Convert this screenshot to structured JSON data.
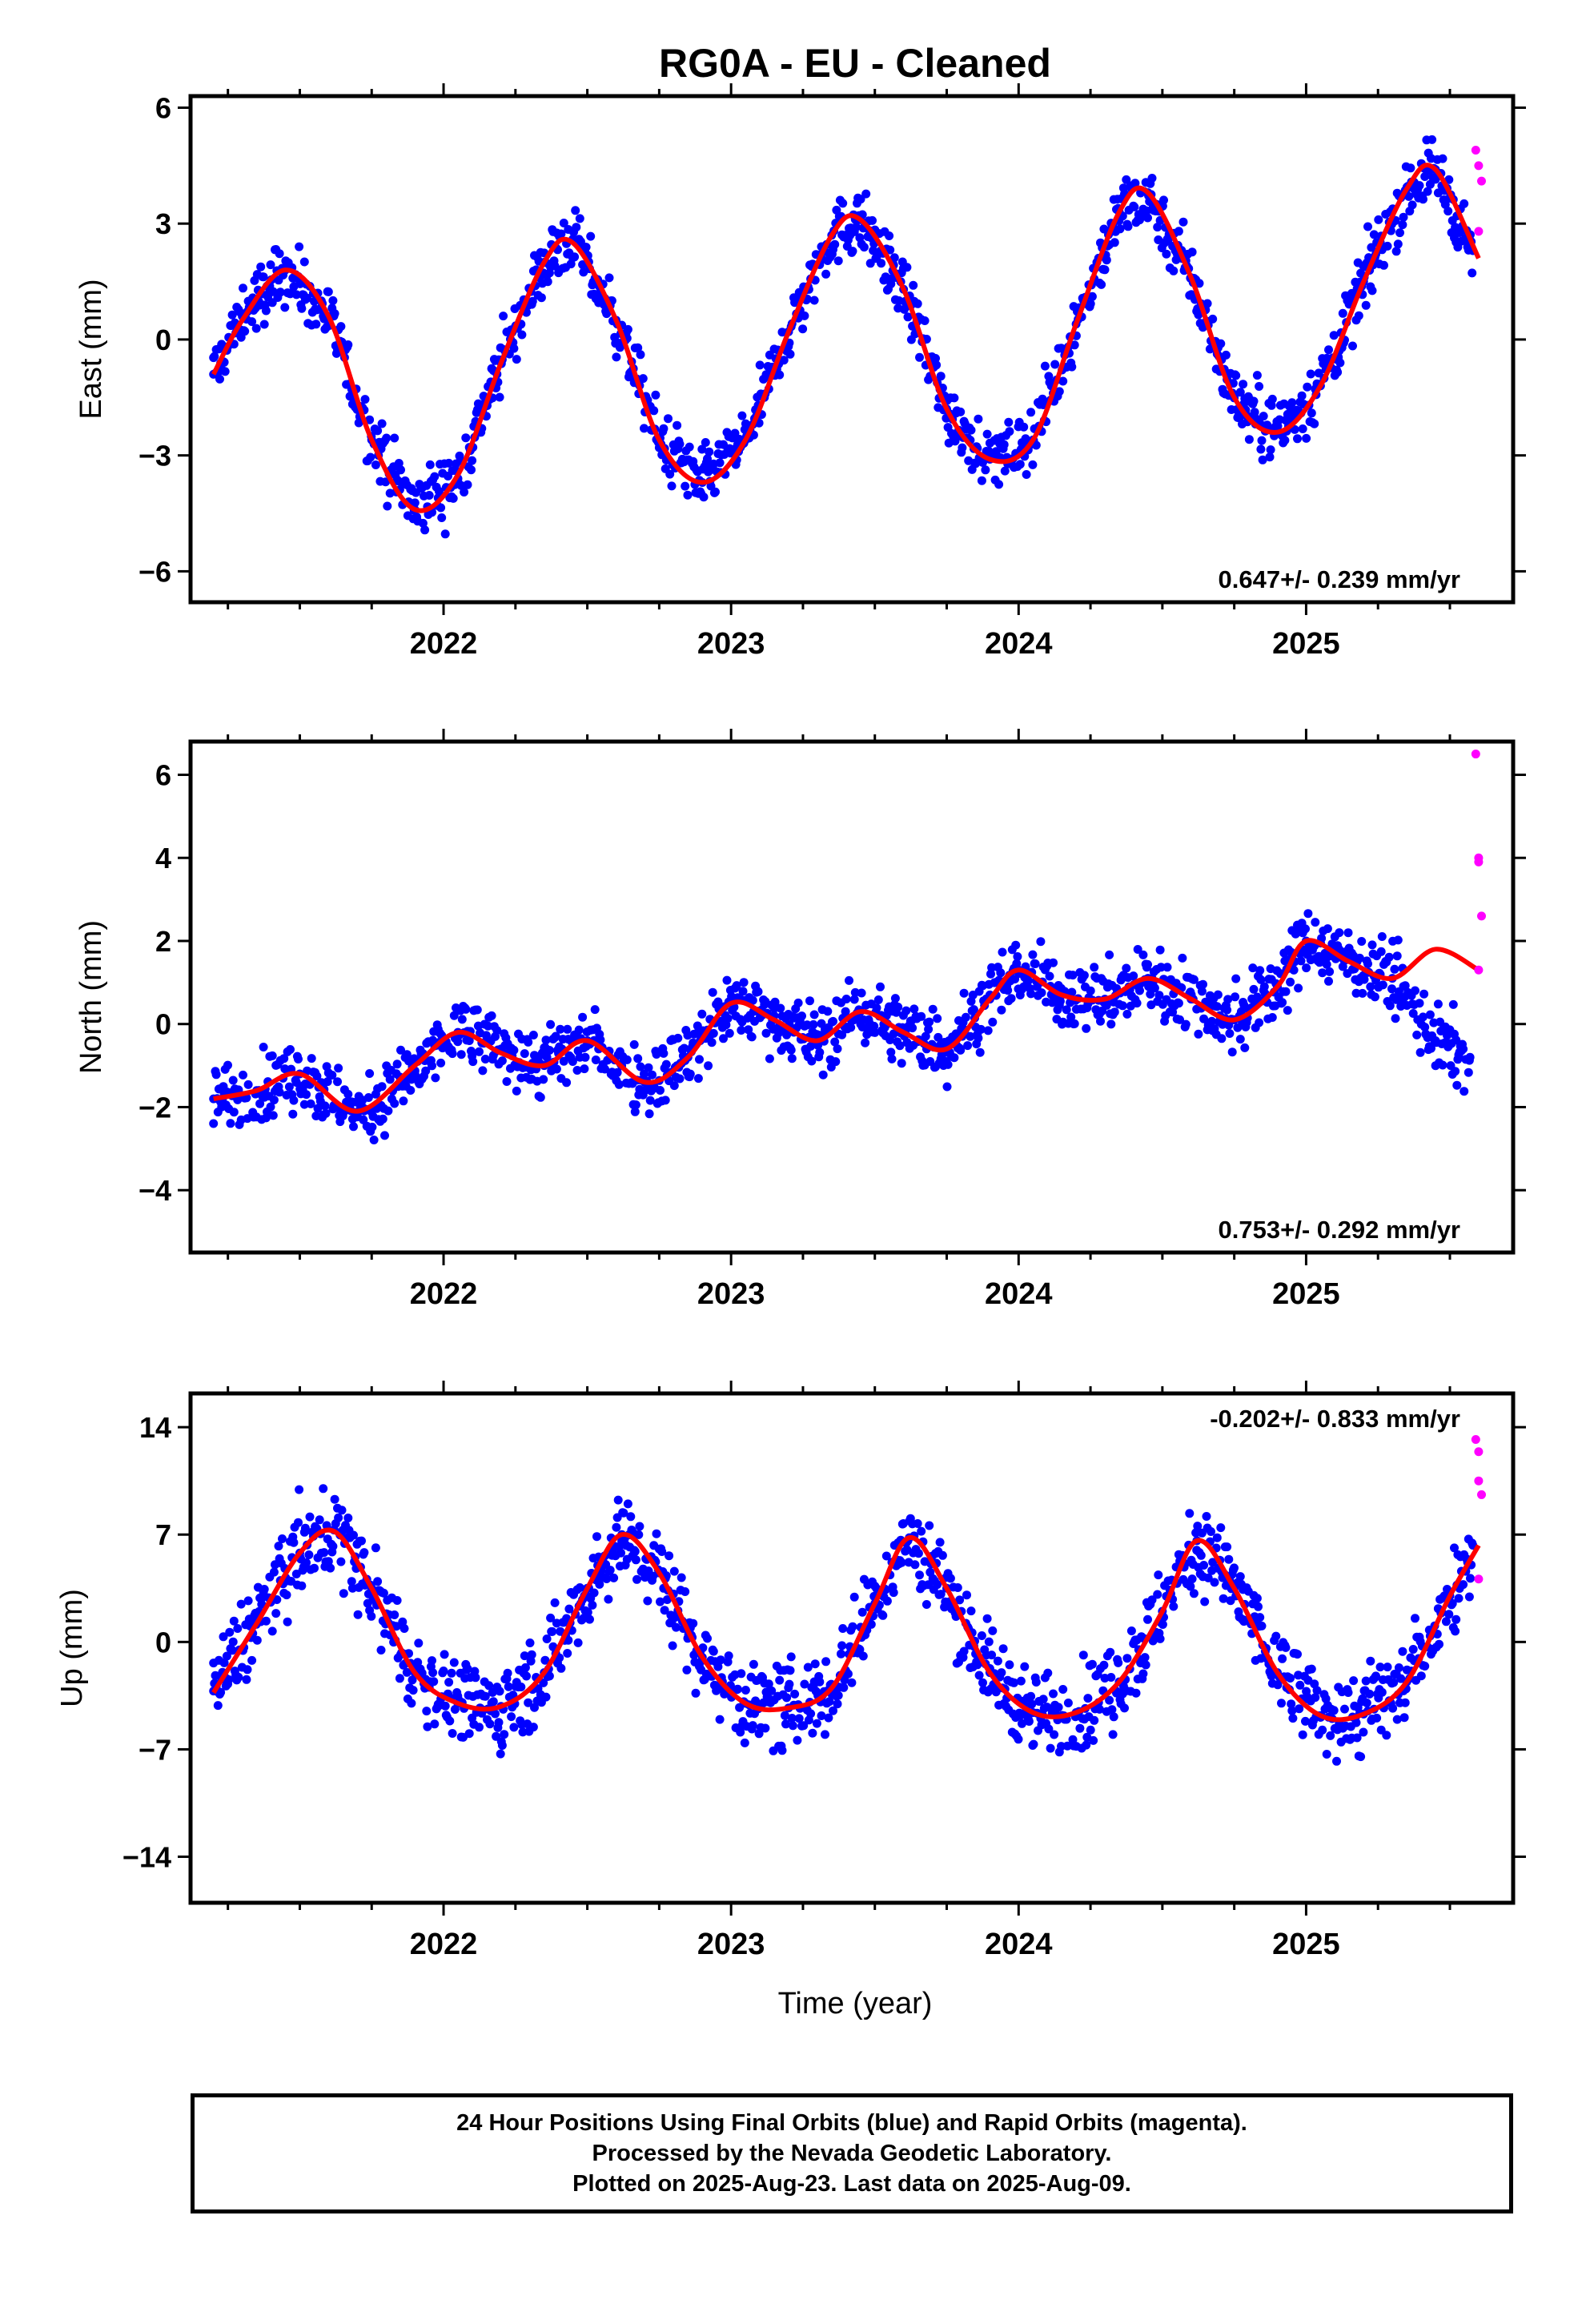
{
  "title": "RG0A  - EU - Cleaned",
  "footer": {
    "line1": "24 Hour Positions Using Final Orbits (blue) and Rapid Orbits (magenta).",
    "line2": "Processed by the Nevada Geodetic Laboratory.",
    "line3": "Plotted on 2025-Aug-23. Last data on 2025-Aug-09."
  },
  "colors": {
    "final_orbits": "#0000ff",
    "rapid_orbits": "#ff00ff",
    "model_fit": "#ff0000",
    "frame": "#000000"
  },
  "chart_data": [
    {
      "type": "scatter",
      "panel": "east",
      "ylabel": "East (mm)",
      "xlabel": "",
      "xlim": [
        2021.12,
        2025.72
      ],
      "ylim": [
        -6.8,
        6.3
      ],
      "xticks": [
        "2022",
        "2023",
        "2024",
        "2025"
      ],
      "yticks": [
        "6",
        "3",
        "0",
        "−3",
        "−6"
      ],
      "ytick_values": [
        6,
        3,
        0,
        -3,
        -6
      ],
      "rate_text": "0.647+/- 0.239 mm/yr",
      "rate_position": "bottom-right",
      "series": [
        {
          "name": "final orbits",
          "color": "#0000ff",
          "x": [
            2021.2,
            2021.3,
            2021.45,
            2021.6,
            2021.75,
            2021.9,
            2022.05,
            2022.2,
            2022.35,
            2022.45,
            2022.6,
            2022.75,
            2022.9,
            2023.05,
            2023.2,
            2023.35,
            2023.45,
            2023.6,
            2023.75,
            2023.9,
            2024.05,
            2024.2,
            2024.35,
            2024.45,
            2024.6,
            2024.75,
            2024.9,
            2025.05,
            2025.2,
            2025.35,
            2025.45,
            2025.58
          ],
          "y": [
            -0.9,
            0.6,
            1.8,
            0.6,
            -2.6,
            -4.4,
            -3.6,
            -0.6,
            2.0,
            2.6,
            0.5,
            -2.6,
            -3.7,
            -2.6,
            0.2,
            2.7,
            3.1,
            1.3,
            -1.8,
            -3.1,
            -2.6,
            0.4,
            3.3,
            3.8,
            1.6,
            -1.5,
            -2.4,
            -1.2,
            1.5,
            3.9,
            4.4,
            2.3
          ]
        },
        {
          "name": "rapid orbits",
          "color": "#ff00ff",
          "x": [
            2025.59,
            2025.6,
            2025.61,
            2025.6
          ],
          "y": [
            4.9,
            4.5,
            4.1,
            2.8
          ]
        },
        {
          "name": "model fit",
          "color": "#ff0000",
          "x": [
            2021.2,
            2021.3,
            2021.45,
            2021.6,
            2021.75,
            2021.9,
            2022.05,
            2022.2,
            2022.35,
            2022.45,
            2022.6,
            2022.75,
            2022.9,
            2023.05,
            2023.2,
            2023.35,
            2023.45,
            2023.6,
            2023.75,
            2023.9,
            2024.05,
            2024.2,
            2024.35,
            2024.45,
            2024.6,
            2024.75,
            2024.9,
            2025.05,
            2025.2,
            2025.35,
            2025.45,
            2025.6
          ],
          "y": [
            -0.9,
            0.5,
            1.8,
            0.6,
            -2.6,
            -4.4,
            -3.5,
            -0.6,
            2.0,
            2.5,
            0.5,
            -2.6,
            -3.7,
            -2.6,
            0.2,
            2.7,
            3.1,
            1.3,
            -1.8,
            -3.1,
            -2.6,
            0.4,
            3.3,
            3.8,
            1.6,
            -1.5,
            -2.4,
            -1.2,
            1.5,
            3.9,
            4.4,
            2.1
          ]
        }
      ]
    },
    {
      "type": "scatter",
      "panel": "north",
      "ylabel": "North (mm)",
      "xlabel": "",
      "xlim": [
        2021.12,
        2025.72
      ],
      "ylim": [
        -5.5,
        6.8
      ],
      "xticks": [
        "2022",
        "2023",
        "2024",
        "2025"
      ],
      "yticks": [
        "6",
        "4",
        "2",
        "0",
        "−2",
        "−4"
      ],
      "ytick_values": [
        6,
        4,
        2,
        0,
        -2,
        -4
      ],
      "rate_text": "0.753+/- 0.292 mm/yr",
      "rate_position": "bottom-right",
      "series": [
        {
          "name": "final orbits",
          "color": "#0000ff",
          "x": [
            2021.2,
            2021.35,
            2021.5,
            2021.7,
            2021.9,
            2022.05,
            2022.2,
            2022.35,
            2022.5,
            2022.7,
            2022.85,
            2023.0,
            2023.15,
            2023.3,
            2023.45,
            2023.6,
            2023.75,
            2023.9,
            2024.0,
            2024.15,
            2024.3,
            2024.45,
            2024.6,
            2024.75,
            2024.9,
            2025.0,
            2025.15,
            2025.3,
            2025.45,
            2025.57
          ],
          "y": [
            -1.8,
            -1.6,
            -1.2,
            -2.2,
            -1.2,
            -0.2,
            -0.6,
            -1.0,
            -0.4,
            -1.4,
            -0.8,
            0.5,
            0.2,
            -0.4,
            0.3,
            -0.2,
            -0.6,
            0.7,
            1.3,
            0.7,
            0.6,
            1.1,
            0.6,
            0.1,
            0.9,
            2.0,
            1.6,
            1.1,
            -0.4,
            -0.8
          ]
        },
        {
          "name": "rapid orbits",
          "color": "#ff00ff",
          "x": [
            2025.59,
            2025.6,
            2025.6,
            2025.61,
            2025.6
          ],
          "y": [
            6.5,
            4.0,
            3.9,
            2.6,
            1.3
          ]
        },
        {
          "name": "model fit",
          "color": "#ff0000",
          "x": [
            2021.2,
            2021.35,
            2021.5,
            2021.7,
            2021.9,
            2022.05,
            2022.2,
            2022.35,
            2022.5,
            2022.7,
            2022.85,
            2023.0,
            2023.15,
            2023.3,
            2023.45,
            2023.6,
            2023.75,
            2023.9,
            2024.0,
            2024.15,
            2024.3,
            2024.45,
            2024.6,
            2024.75,
            2024.9,
            2025.0,
            2025.15,
            2025.3,
            2025.45,
            2025.6
          ],
          "y": [
            -1.8,
            -1.6,
            -1.2,
            -2.1,
            -1.0,
            -0.2,
            -0.7,
            -1.0,
            -0.4,
            -1.4,
            -0.8,
            0.5,
            0.1,
            -0.4,
            0.3,
            -0.2,
            -0.6,
            0.6,
            1.3,
            0.7,
            0.6,
            1.1,
            0.6,
            0.1,
            0.9,
            2.0,
            1.5,
            1.1,
            1.8,
            1.3
          ]
        }
      ]
    },
    {
      "type": "scatter",
      "panel": "up",
      "ylabel": "Up (mm)",
      "xlabel": "Time (year)",
      "xlim": [
        2021.12,
        2025.72
      ],
      "ylim": [
        -17,
        16.2
      ],
      "xticks": [
        "2022",
        "2023",
        "2024",
        "2025"
      ],
      "yticks": [
        "14",
        "7",
        "0",
        "−7",
        "−14"
      ],
      "ytick_values": [
        14,
        7,
        0,
        -7,
        -14
      ],
      "rate_text": "-0.202+/- 0.833 mm/yr",
      "rate_position": "top-right",
      "series": [
        {
          "name": "final orbits",
          "color": "#0000ff",
          "x": [
            2021.2,
            2021.35,
            2021.5,
            2021.62,
            2021.75,
            2021.9,
            2022.05,
            2022.2,
            2022.35,
            2022.5,
            2022.62,
            2022.75,
            2022.9,
            2023.05,
            2023.2,
            2023.35,
            2023.5,
            2023.62,
            2023.75,
            2023.9,
            2024.05,
            2024.2,
            2024.35,
            2024.5,
            2024.62,
            2024.75,
            2024.9,
            2025.05,
            2025.2,
            2025.35,
            2025.5,
            2025.58
          ],
          "y": [
            -3.2,
            1.4,
            5.8,
            7.3,
            3.5,
            -2.0,
            -4.0,
            -4.2,
            -2.0,
            3.5,
            7.0,
            4.5,
            -1.0,
            -4.0,
            -4.3,
            -3.0,
            2.5,
            6.8,
            3.5,
            -2.0,
            -4.6,
            -4.6,
            -2.6,
            2.0,
            6.6,
            3.5,
            -2.0,
            -4.8,
            -4.7,
            -2.6,
            3.0,
            6.3
          ]
        },
        {
          "name": "rapid orbits",
          "color": "#ff00ff",
          "x": [
            2025.59,
            2025.6,
            2025.6,
            2025.61,
            2025.6
          ],
          "y": [
            13.2,
            12.4,
            10.5,
            9.6,
            4.1
          ]
        },
        {
          "name": "model fit",
          "color": "#ff0000",
          "x": [
            2021.2,
            2021.35,
            2021.5,
            2021.62,
            2021.75,
            2021.9,
            2022.05,
            2022.2,
            2022.35,
            2022.5,
            2022.62,
            2022.75,
            2022.9,
            2023.05,
            2023.2,
            2023.35,
            2023.5,
            2023.62,
            2023.75,
            2023.9,
            2024.05,
            2024.2,
            2024.35,
            2024.5,
            2024.62,
            2024.75,
            2024.9,
            2025.05,
            2025.2,
            2025.35,
            2025.5,
            2025.6
          ],
          "y": [
            -3.3,
            1.2,
            5.8,
            7.2,
            3.5,
            -2.0,
            -4.0,
            -4.2,
            -2.0,
            3.5,
            7.0,
            4.5,
            -1.0,
            -4.0,
            -4.3,
            -3.0,
            2.5,
            6.8,
            3.5,
            -2.0,
            -4.6,
            -4.6,
            -2.6,
            2.0,
            6.6,
            3.5,
            -2.0,
            -4.8,
            -4.7,
            -2.6,
            3.0,
            6.3
          ]
        }
      ]
    }
  ]
}
